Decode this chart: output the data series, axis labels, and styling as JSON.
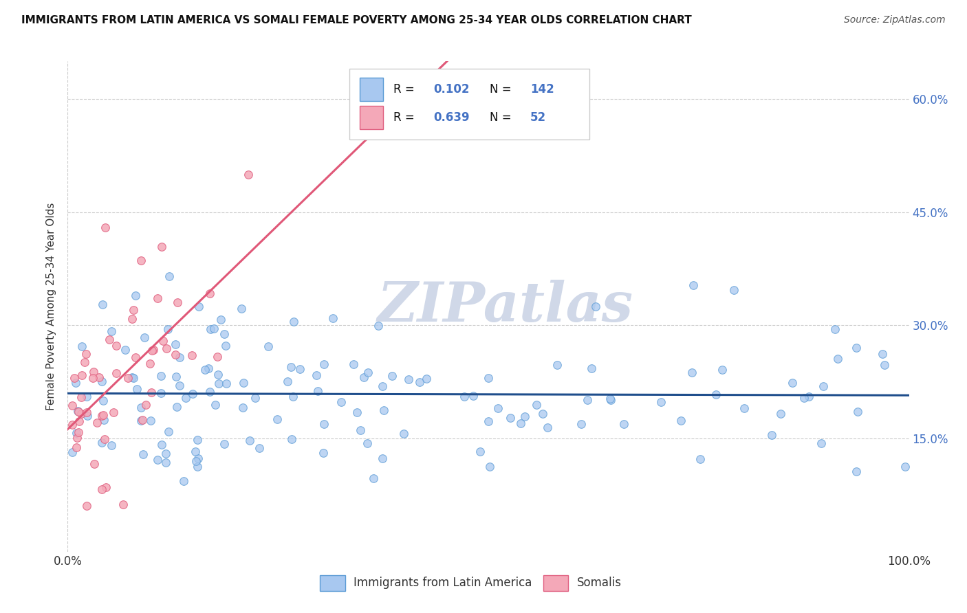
{
  "title": "IMMIGRANTS FROM LATIN AMERICA VS SOMALI FEMALE POVERTY AMONG 25-34 YEAR OLDS CORRELATION CHART",
  "source": "Source: ZipAtlas.com",
  "ylabel": "Female Poverty Among 25-34 Year Olds",
  "xlim": [
    0.0,
    1.0
  ],
  "ylim": [
    0.0,
    0.65
  ],
  "r_latin": 0.102,
  "n_latin": 142,
  "r_somali": 0.639,
  "n_somali": 52,
  "legend_label_latin": "Immigrants from Latin America",
  "legend_label_somali": "Somalis",
  "color_latin_fill": "#a8c8f0",
  "color_latin_edge": "#5b9bd5",
  "color_somali_fill": "#f4a8b8",
  "color_somali_edge": "#e06080",
  "color_latin_line": "#1f4e8c",
  "color_somali_line": "#e05878",
  "color_r_value": "#4472c4",
  "color_grid": "#cccccc",
  "ytick_vals": [
    0.15,
    0.3,
    0.45,
    0.6
  ],
  "ytick_labels": [
    "15.0%",
    "30.0%",
    "45.0%",
    "60.0%"
  ],
  "watermark_text": "ZIPatlas",
  "watermark_color": "#d0d8e8",
  "seed": 1234
}
